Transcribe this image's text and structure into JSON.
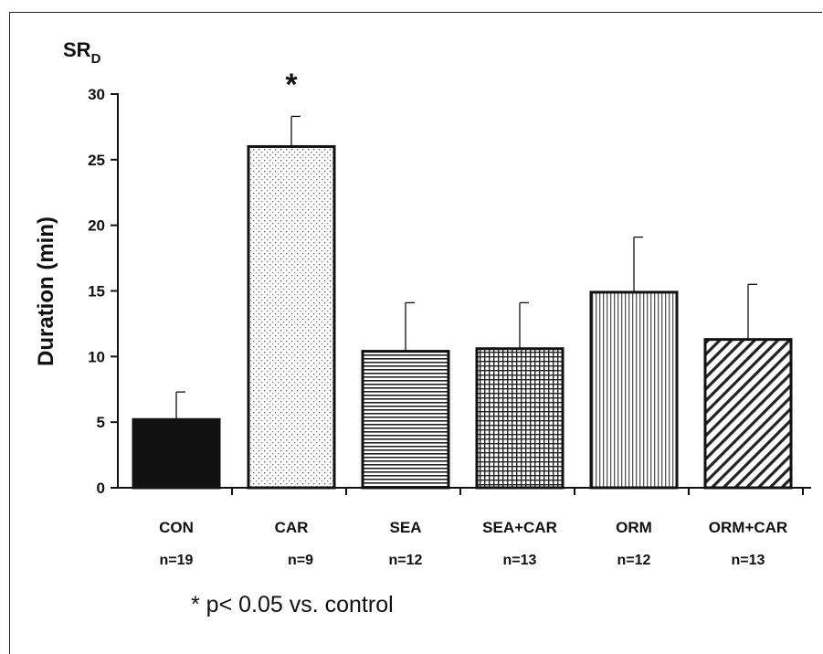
{
  "chart_data": {
    "type": "bar",
    "title": "SR",
    "title_subscript": "D",
    "ylabel": "Duration (min)",
    "xlabel": "",
    "ylim": [
      0,
      30
    ],
    "yticks": [
      "0",
      "5",
      "10",
      "15",
      "20",
      "25",
      "30"
    ],
    "grid": false,
    "categories": [
      "CON",
      "CAR",
      "SEA",
      "SEA+CAR",
      "ORM",
      "ORM+CAR"
    ],
    "sample_sizes": [
      "n=19",
      "n=9",
      "n=12",
      "n=13",
      "n=12",
      "n=13"
    ],
    "values": [
      5.2,
      26.0,
      10.4,
      10.6,
      14.9,
      11.3
    ],
    "errors": [
      2.1,
      2.3,
      3.7,
      3.5,
      4.2,
      4.2
    ],
    "patterns": [
      "solid-black",
      "dots",
      "horizontal-lines",
      "grid",
      "vertical-lines",
      "diagonal-lines"
    ],
    "significance_markers": [
      {
        "category": "CAR",
        "symbol": "*"
      }
    ],
    "footnote": "* p< 0.05 vs. control"
  }
}
